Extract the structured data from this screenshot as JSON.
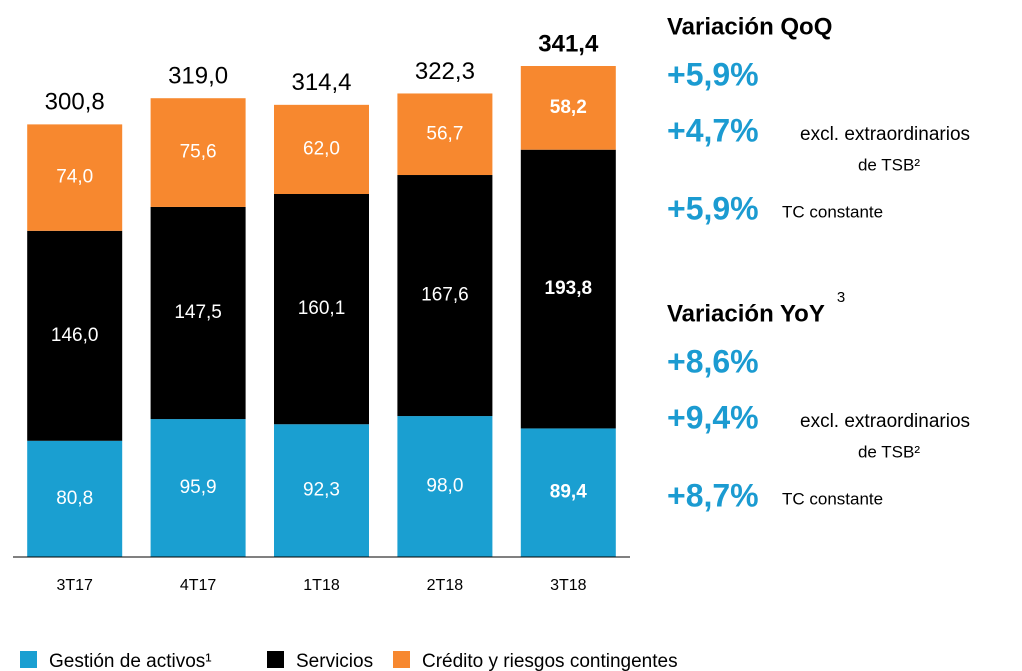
{
  "chart_data": {
    "type": "stacked_bar",
    "categories": [
      "3T17",
      "4T17",
      "1T18",
      "2T18",
      "3T18"
    ],
    "series": [
      {
        "name": "Gestión de activos¹",
        "color": "#1a9fd1",
        "values": [
          80.8,
          95.9,
          92.3,
          98.0,
          89.4
        ],
        "value_labels": [
          "80,8",
          "95,9",
          "92,3",
          "98,0",
          "89,4"
        ]
      },
      {
        "name": "Servicios",
        "color": "#000000",
        "values": [
          146.0,
          147.5,
          160.1,
          167.6,
          193.8
        ],
        "value_labels": [
          "146,0",
          "147,5",
          "160,1",
          "167,6",
          "193,8"
        ]
      },
      {
        "name": "Crédito y riesgos contingentes",
        "color": "#f7882f",
        "values": [
          74.0,
          75.6,
          62.0,
          56.7,
          58.2
        ],
        "value_labels": [
          "74,0",
          "75,6",
          "62,0",
          "56,7",
          "58,2"
        ]
      }
    ],
    "totals": [
      300.8,
      319.0,
      314.4,
      322.3,
      341.4
    ],
    "total_labels": [
      "300,8",
      "319,0",
      "314,4",
      "322,3",
      "341,4"
    ],
    "bold_categories": [
      "3T18"
    ],
    "legend": "bottom"
  },
  "panels": [
    {
      "title": "Variación QoQ",
      "items": [
        {
          "value": "+5,9%"
        },
        {
          "value": "+4,7%",
          "note": [
            "excl. extraordinarios",
            "de TSB²"
          ]
        },
        {
          "value": "+5,9%",
          "note": [
            "TC constante"
          ]
        }
      ]
    },
    {
      "title": "Variación YoY",
      "title_note": "3",
      "items": [
        {
          "value": "+8,6%"
        },
        {
          "value": "+9,4%",
          "note": [
            "excl. extraordinarios",
            "de TSB²"
          ]
        },
        {
          "value": "+8,7%",
          "note": [
            "TC constante"
          ]
        }
      ]
    }
  ]
}
